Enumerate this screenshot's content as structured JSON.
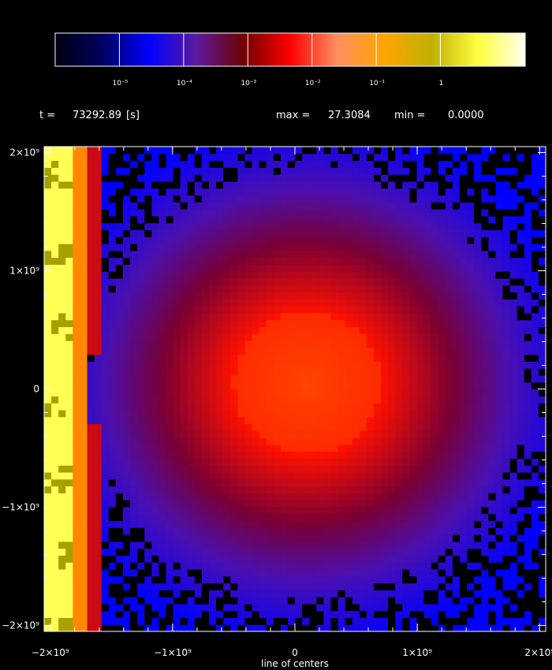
{
  "chart_data": {
    "type": "heatmap",
    "colorbar": {
      "scale": "log",
      "colors": [
        "#000010",
        "#000060",
        "#0000ff",
        "#5a1aa0",
        "#700000",
        "#ff0000",
        "#ff9060",
        "#ffa500",
        "#c0b000",
        "#ffff40",
        "#ffffee"
      ],
      "ticks": [
        {
          "value": 1e-05,
          "label": "10⁻⁵"
        },
        {
          "value": 0.0001,
          "label": "10⁻⁴"
        },
        {
          "value": 0.001,
          "label": "10⁻³"
        },
        {
          "value": 0.01,
          "label": "10⁻²"
        },
        {
          "value": 0.1,
          "label": "10⁻¹"
        },
        {
          "value": 1,
          "label": "1"
        }
      ]
    },
    "header": {
      "time_prefix": "t =",
      "time_value": "73292.89",
      "time_unit": "[s]",
      "max_prefix": "max =",
      "max_value": "27.3084",
      "min_prefix": "min =",
      "min_value": "0.0000"
    },
    "xlabel": "line of centers",
    "ylabel": "",
    "xlim": [
      -2050000000.0,
      2050000000.0
    ],
    "ylim": [
      -2050000000.0,
      2050000000.0
    ],
    "x_ticks": [
      {
        "value": -2000000000.0,
        "label": "−2×10⁹"
      },
      {
        "value": -1000000000.0,
        "label": "−1×10⁹"
      },
      {
        "value": 0,
        "label": "0"
      },
      {
        "value": 1000000000.0,
        "label": "1×10⁹"
      },
      {
        "value": 2000000000.0,
        "label": "2×10⁹"
      }
    ],
    "y_ticks": [
      {
        "value": 2000000000.0,
        "label": "2×10⁹"
      },
      {
        "value": 1000000000.0,
        "label": "1×10⁹"
      },
      {
        "value": 0,
        "label": "0"
      },
      {
        "value": -1000000000.0,
        "label": "−1×10⁹"
      },
      {
        "value": -2000000000.0,
        "label": "−2×10⁹"
      }
    ],
    "field": {
      "grid": [
        70,
        70
      ],
      "peak_center": [
        100000000.0,
        50000000.0
      ],
      "core_radius": 600000000.0,
      "sphere_radius": 1650000000.0,
      "left_jet": {
        "x": -1970000000.0,
        "y_period": 1300000000.0
      },
      "colors": {
        "core": "#ff4400",
        "mid": "#ff1100",
        "dark": "#7a0033",
        "halo": "#4a10b0",
        "outer": "#0000ff",
        "empty": "#000000",
        "jet_inner": "#ffff55",
        "jet_green": "#a8a000",
        "jet_orange": "#ff8800"
      }
    }
  }
}
